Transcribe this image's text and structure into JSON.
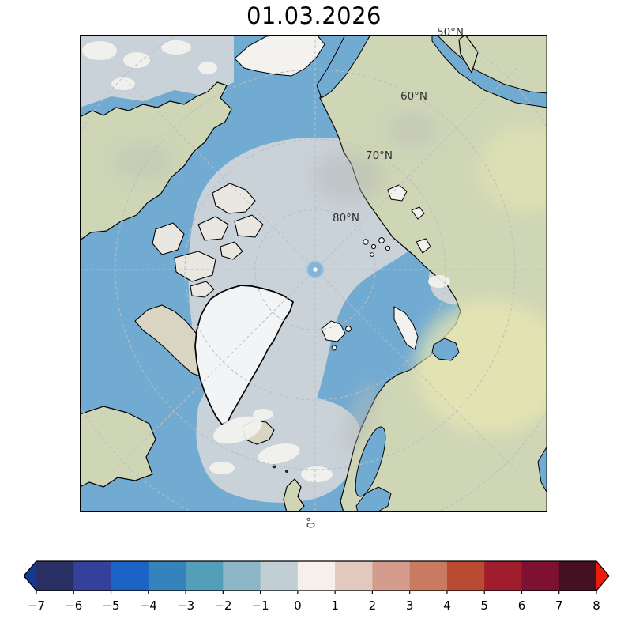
{
  "title": "01.03.2026",
  "map": {
    "graticule_labels": [
      {
        "text": "50°N"
      },
      {
        "text": "60°N"
      },
      {
        "text": "70°N"
      },
      {
        "text": "80°N"
      }
    ],
    "meridian_label": {
      "text": "0°"
    },
    "colors": {
      "ocean": "#72abd2",
      "ice": "#c9d2d9",
      "snow": "#f4f2ef",
      "land": "#cfd6b6",
      "island": "#e9e7e0",
      "tan": "#d9d5c2",
      "greenland": "#f2f4f6",
      "coast": "#000000",
      "grid": "#bdbdbd",
      "label": "#2e2e2e",
      "pole": "#85b4d7",
      "pole_ring": "#a8c8e2",
      "yellow": "#e8e7b2",
      "gray": "#b7bab7"
    }
  },
  "colorbar": {
    "orientation": "horizontal",
    "extend": "both",
    "ticks": [
      "−7",
      "−6",
      "−5",
      "−4",
      "−3",
      "−2",
      "−1",
      "0",
      "1",
      "2",
      "3",
      "4",
      "5",
      "6",
      "7",
      "8"
    ],
    "segment_colors": [
      "#292f63",
      "#35409b",
      "#1b63c5",
      "#3583bd",
      "#549eba",
      "#8db7c6",
      "#c1ced4",
      "#f6efeb",
      "#e2c8bf",
      "#d49c8c",
      "#c87b60",
      "#b94b33",
      "#9f1d2c",
      "#7d1033",
      "#441022"
    ],
    "arrow_left_color": "#16398f",
    "arrow_right_color": "#ee1c0c",
    "outline_color": "#000000"
  },
  "chart_data": {
    "type": "heatmap",
    "title": "01.03.2026",
    "description": "North polar stereographic map (Arctic) with diverging blue-red anomaly colorbar; central Arctic sea-ice shown pale gray-blue, open ocean blue, land in terrain tones, Greenland ice sheet white",
    "graticule_labels": [
      "50°N",
      "60°N",
      "70°N",
      "80°N",
      "0°"
    ],
    "colorbar_ticks": [
      -7,
      -6,
      -5,
      -4,
      -3,
      -2,
      -1,
      0,
      1,
      2,
      3,
      4,
      5,
      6,
      7,
      8
    ],
    "colorbar_range": [
      -7,
      8
    ],
    "colorbar_extend": "both",
    "legend_position": "bottom"
  }
}
